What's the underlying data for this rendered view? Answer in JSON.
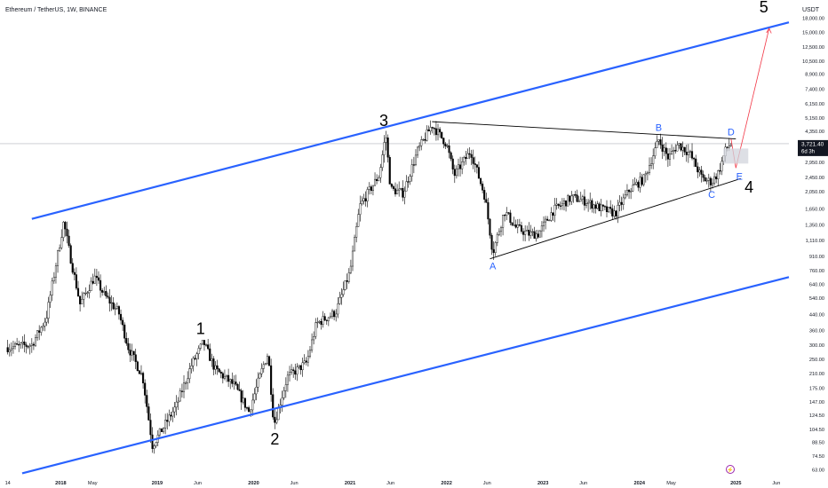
{
  "header": {
    "title": "Ethereum / TetherUS, 1W, BINANCE"
  },
  "axis": {
    "currency": "USDT",
    "y_ticks": [
      "18,000.00",
      "15,000.00",
      "12,500.00",
      "10,500.00",
      "8,900.00",
      "7,400.00",
      "6,150.00",
      "5,150.00",
      "4,350.00",
      "2,950.00",
      "2,450.00",
      "2,050.00",
      "1,650.00",
      "1,350.00",
      "1,110.00",
      "910.00",
      "760.00",
      "640.00",
      "540.00",
      "440.00",
      "360.00",
      "300.00",
      "250.00",
      "210.00",
      "175.00",
      "147.00",
      "124.50",
      "104.50",
      "88.50",
      "74.50",
      "63.00"
    ],
    "x_ticks": [
      {
        "label": "14",
        "date": "2017.45"
      },
      {
        "label": "2018",
        "date": "2018.0"
      },
      {
        "label": "May",
        "date": "2018.33"
      },
      {
        "label": "2019",
        "date": "2019.0"
      },
      {
        "label": "Jun",
        "date": "2019.42"
      },
      {
        "label": "2020",
        "date": "2020.0"
      },
      {
        "label": "Jun",
        "date": "2020.42"
      },
      {
        "label": "2021",
        "date": "2021.0"
      },
      {
        "label": "Jun",
        "date": "2021.42"
      },
      {
        "label": "2022",
        "date": "2022.0"
      },
      {
        "label": "Jun",
        "date": "2022.42"
      },
      {
        "label": "2023",
        "date": "2023.0"
      },
      {
        "label": "Jun",
        "date": "2023.42"
      },
      {
        "label": "2024",
        "date": "2024.0"
      },
      {
        "label": "May",
        "date": "2024.33"
      },
      {
        "label": "2025",
        "date": "2025.0"
      },
      {
        "label": "Jun",
        "date": "2025.42"
      }
    ],
    "current_price": "3,721.40",
    "countdown": "6d 3h"
  },
  "colors": {
    "channel": "#2962ff",
    "wave_label": "#2962ff",
    "projection": "#f23645",
    "candle_up": "#ffffff",
    "candle_down": "#000000"
  },
  "chart_data": {
    "type": "candlestick",
    "title": "Ethereum / TetherUS, 1W, BINANCE",
    "y_scale": "log",
    "xlabel": "",
    "ylabel": "USDT",
    "ylim": [
      60,
      20000
    ],
    "xlim": [
      "2017.37",
      "2025.55"
    ],
    "price_path": [
      {
        "date": "2017.45",
        "price": 290
      },
      {
        "date": "2017.70",
        "price": 300
      },
      {
        "date": "2017.85",
        "price": 420
      },
      {
        "date": "2018.03",
        "price": 1400
      },
      {
        "date": "2018.10",
        "price": 900
      },
      {
        "date": "2018.20",
        "price": 500
      },
      {
        "date": "2018.35",
        "price": 700
      },
      {
        "date": "2018.45",
        "price": 560
      },
      {
        "date": "2018.60",
        "price": 450
      },
      {
        "date": "2018.70",
        "price": 290
      },
      {
        "date": "2018.85",
        "price": 200
      },
      {
        "date": "2018.95",
        "price": 85
      },
      {
        "date": "2019.20",
        "price": 140
      },
      {
        "date": "2019.35",
        "price": 230
      },
      {
        "date": "2019.48",
        "price": 310
      },
      {
        "date": "2019.60",
        "price": 220
      },
      {
        "date": "2019.80",
        "price": 180
      },
      {
        "date": "2019.95",
        "price": 130
      },
      {
        "date": "2020.10",
        "price": 230
      },
      {
        "date": "2020.15",
        "price": 270
      },
      {
        "date": "2020.21",
        "price": 110
      },
      {
        "date": "2020.35",
        "price": 200
      },
      {
        "date": "2020.55",
        "price": 240
      },
      {
        "date": "2020.65",
        "price": 390
      },
      {
        "date": "2020.85",
        "price": 450
      },
      {
        "date": "2021.00",
        "price": 750
      },
      {
        "date": "2021.10",
        "price": 1700
      },
      {
        "date": "2021.30",
        "price": 2500
      },
      {
        "date": "2021.37",
        "price": 4200
      },
      {
        "date": "2021.42",
        "price": 2100
      },
      {
        "date": "2021.55",
        "price": 2000
      },
      {
        "date": "2021.70",
        "price": 3400
      },
      {
        "date": "2021.85",
        "price": 4700
      },
      {
        "date": "2022.00",
        "price": 3700
      },
      {
        "date": "2022.08",
        "price": 2500
      },
      {
        "date": "2022.25",
        "price": 3400
      },
      {
        "date": "2022.40",
        "price": 1900
      },
      {
        "date": "2022.48",
        "price": 950
      },
      {
        "date": "2022.60",
        "price": 1600
      },
      {
        "date": "2022.72",
        "price": 1300
      },
      {
        "date": "2022.85",
        "price": 1200
      },
      {
        "date": "2022.95",
        "price": 1200
      },
      {
        "date": "2023.10",
        "price": 1600
      },
      {
        "date": "2023.30",
        "price": 1900
      },
      {
        "date": "2023.45",
        "price": 1800
      },
      {
        "date": "2023.60",
        "price": 1650
      },
      {
        "date": "2023.75",
        "price": 1550
      },
      {
        "date": "2023.90",
        "price": 2100
      },
      {
        "date": "2024.05",
        "price": 2400
      },
      {
        "date": "2024.20",
        "price": 3900
      },
      {
        "date": "2024.30",
        "price": 3100
      },
      {
        "date": "2024.40",
        "price": 3700
      },
      {
        "date": "2024.52",
        "price": 3300
      },
      {
        "date": "2024.65",
        "price": 2400
      },
      {
        "date": "2024.75",
        "price": 2300
      },
      {
        "date": "2024.82",
        "price": 2600
      },
      {
        "date": "2024.90",
        "price": 3500
      },
      {
        "date": "2024.95",
        "price": 3721
      }
    ],
    "annotations": {
      "waves": [
        {
          "label": "1",
          "date": "2019.45",
          "price": 320
        },
        {
          "label": "2",
          "date": "2020.22",
          "price": 110
        },
        {
          "label": "3",
          "date": "2021.35",
          "price": 4350
        },
        {
          "label": "4",
          "date": "2025.10",
          "price": 2300
        },
        {
          "label": "5",
          "date": "2025.40",
          "price": 18000
        }
      ],
      "triangle_points": [
        {
          "label": "A",
          "date": "2022.48",
          "price": 880
        },
        {
          "label": "B",
          "date": "2024.20",
          "price": 3900
        },
        {
          "label": "C",
          "date": "2024.75",
          "price": 2200
        },
        {
          "label": "D",
          "date": "2024.95",
          "price": 3950
        },
        {
          "label": "E",
          "date": "2025.00",
          "price": 2900
        }
      ],
      "channel_upper": [
        {
          "date": "2017.70",
          "price": 1450
        },
        {
          "date": "2025.55",
          "price": 17000
        }
      ],
      "channel_lower": [
        {
          "date": "2017.60",
          "price": 60
        },
        {
          "date": "2025.55",
          "price": 700
        }
      ],
      "triangle_top": [
        {
          "date": "2021.85",
          "price": 4900
        },
        {
          "date": "2025.00",
          "price": 3950
        }
      ],
      "triangle_bottom": [
        {
          "date": "2022.45",
          "price": 880
        },
        {
          "date": "2025.05",
          "price": 2400
        }
      ]
    }
  }
}
